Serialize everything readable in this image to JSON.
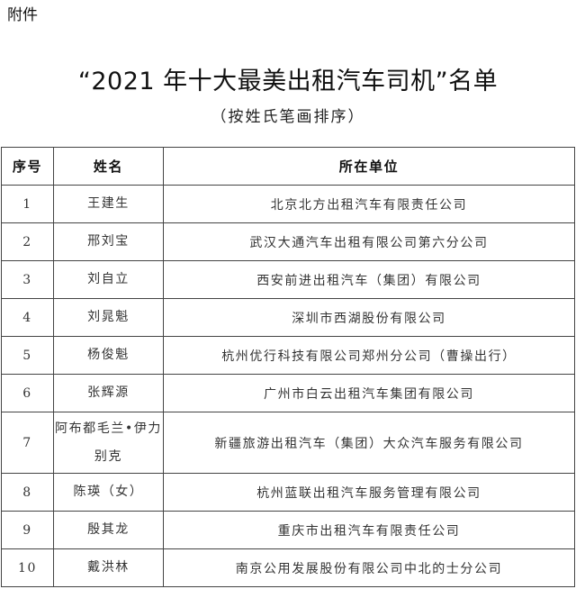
{
  "attachment_label": "附件",
  "title": "“2021 年十大最美出租汽车司机”名单",
  "subtitle": "（按姓氏笔画排序）",
  "table": {
    "headers": [
      "序号",
      "姓名",
      "所在单位"
    ],
    "rows": [
      {
        "no": "1",
        "name": "王建生",
        "unit": "北京北方出租汽车有限责任公司"
      },
      {
        "no": "2",
        "name": "邢刘宝",
        "unit": "武汉大通汽车出租有限公司第六分公司"
      },
      {
        "no": "3",
        "name": "刘自立",
        "unit": "西安前进出租汽车（集团）有限公司"
      },
      {
        "no": "4",
        "name": "刘晁魁",
        "unit": "深圳市西湖股份有限公司"
      },
      {
        "no": "5",
        "name": "杨俊魁",
        "unit": "杭州优行科技有限公司郑州分公司（曹操出行）"
      },
      {
        "no": "6",
        "name": "张辉源",
        "unit": "广州市白云出租汽车集团有限公司"
      },
      {
        "no": "7",
        "name": "阿布都毛兰•伊力别克",
        "unit": "新疆旅游出租汽车（集团）大众汽车服务有限公司"
      },
      {
        "no": "8",
        "name": "陈瑛（女）",
        "unit": "杭州蓝联出租汽车服务管理有限公司"
      },
      {
        "no": "9",
        "name": "殷其龙",
        "unit": "重庆市出租汽车有限责任公司"
      },
      {
        "no": "10",
        "name": "戴洪林",
        "unit": "南京公用发展股份有限公司中北的士分公司"
      }
    ]
  }
}
